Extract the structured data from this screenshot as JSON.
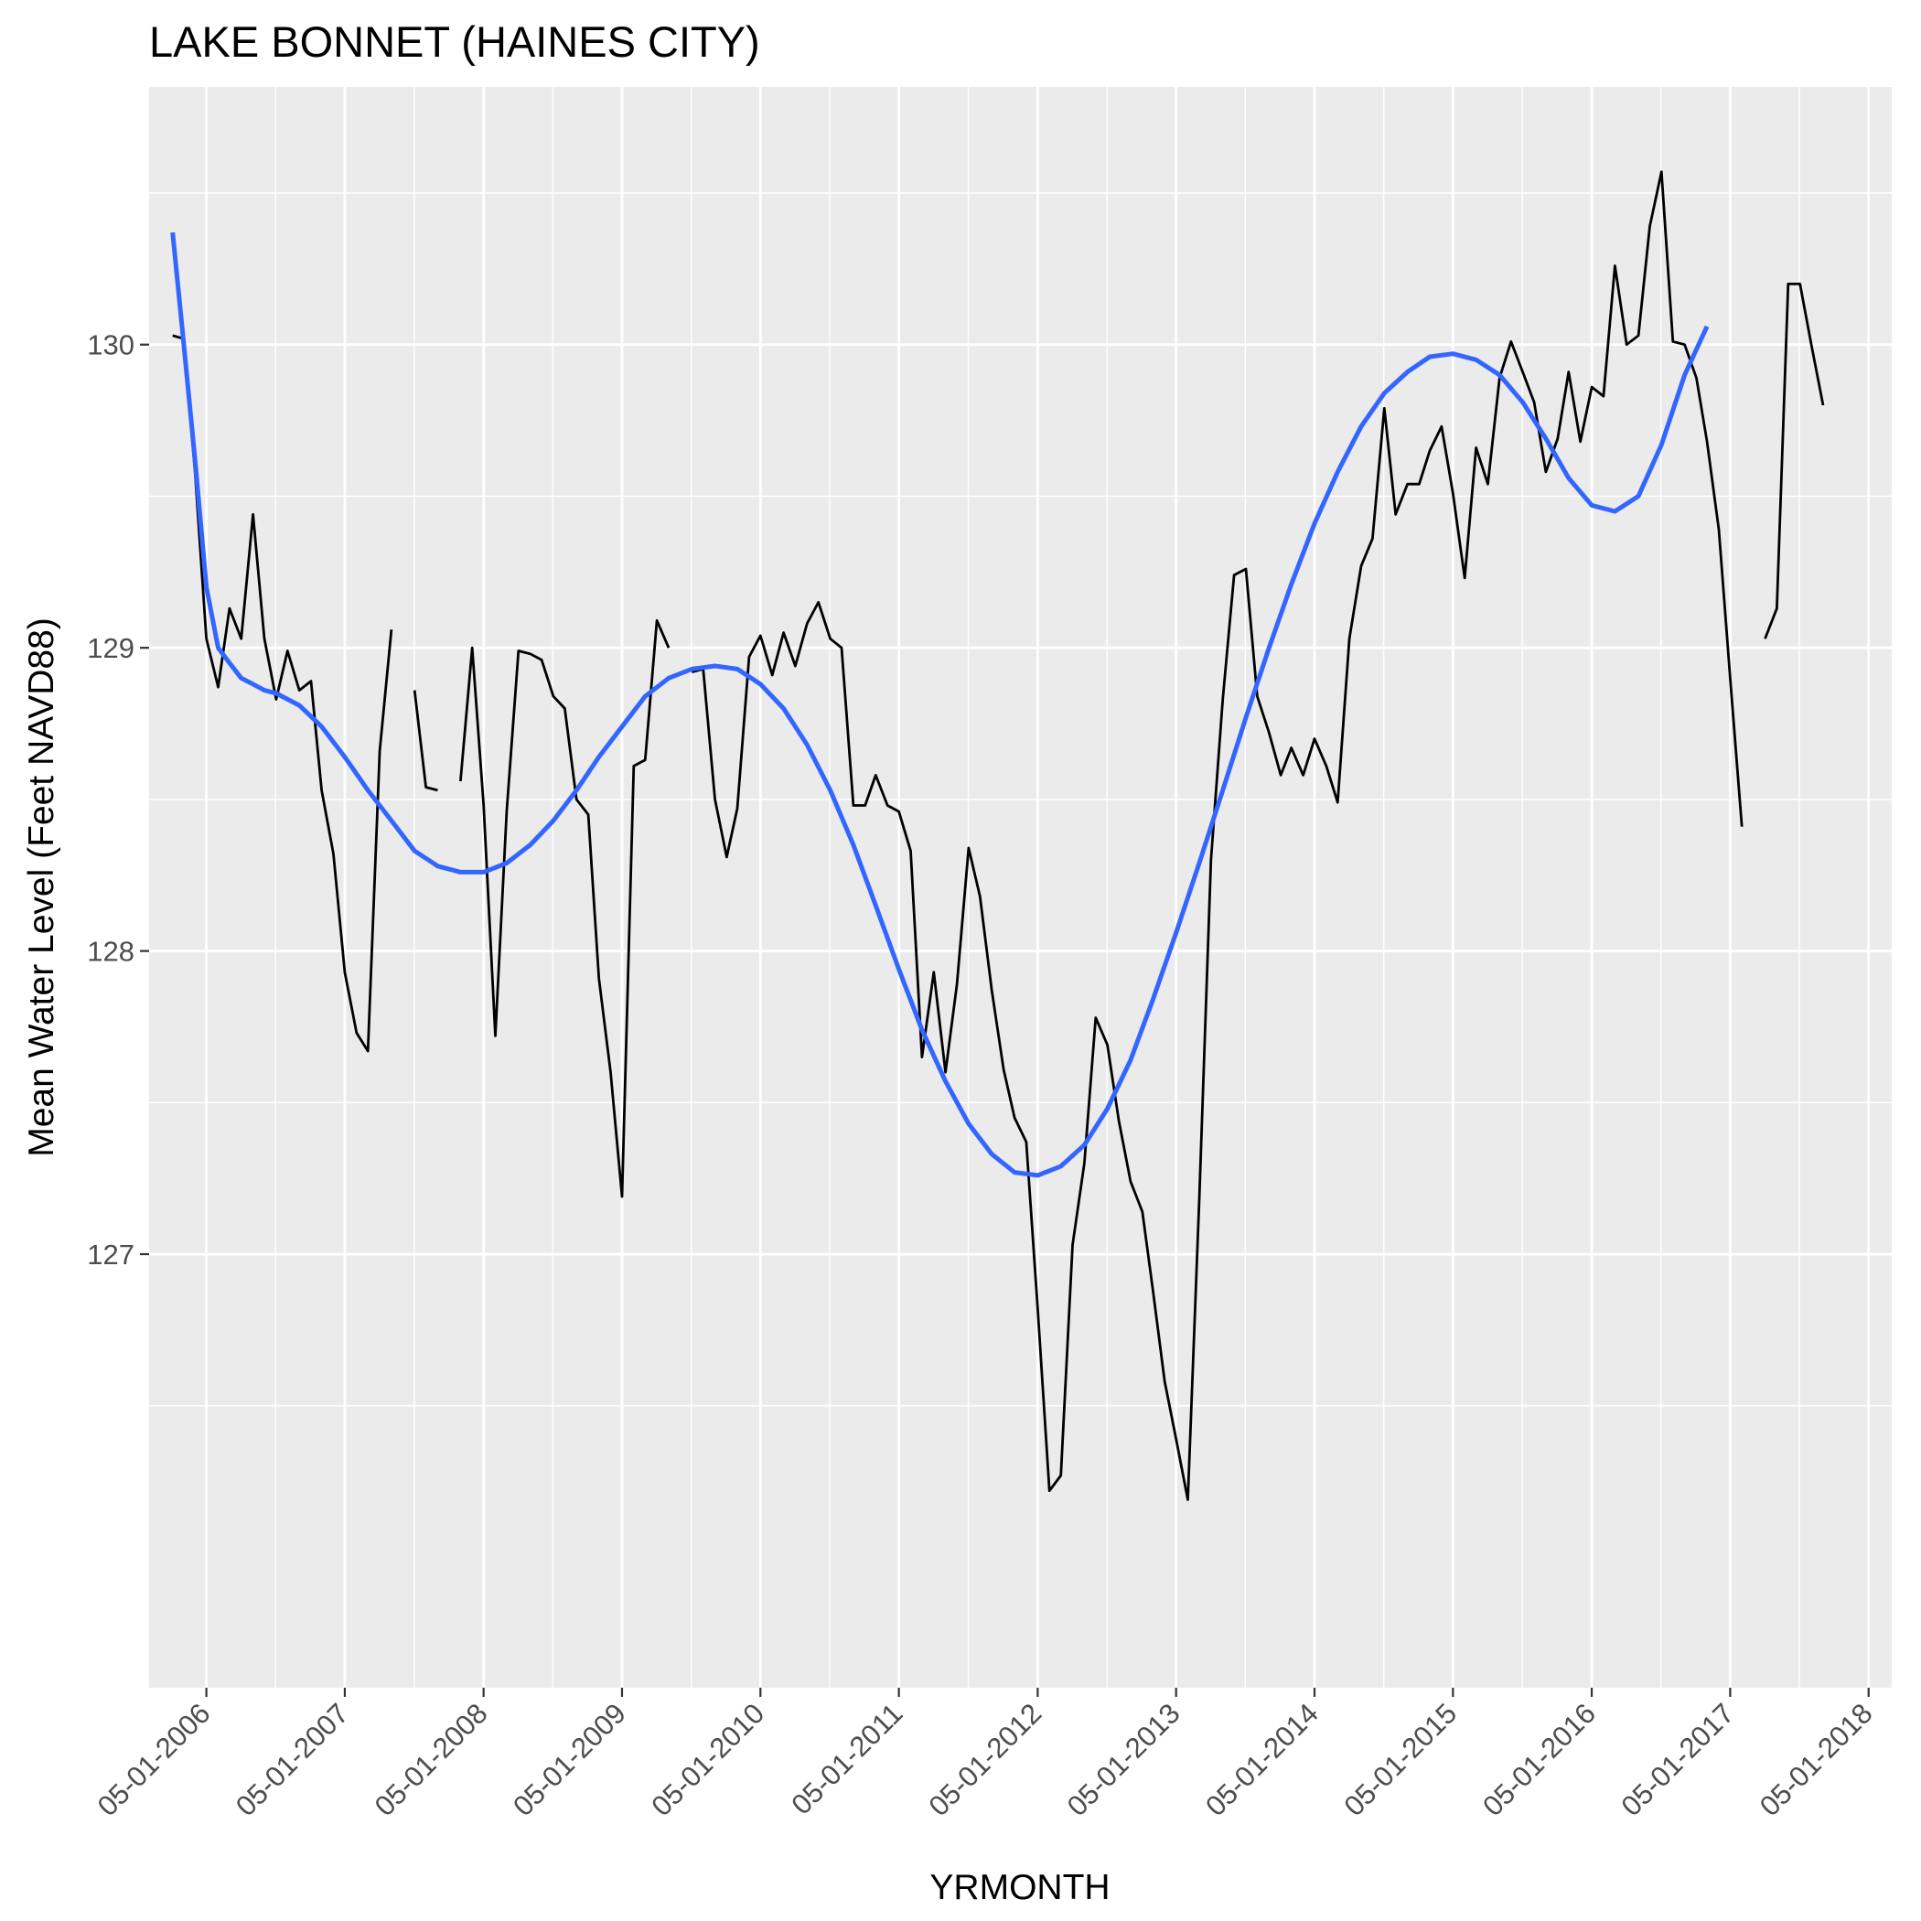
{
  "chart_data": {
    "type": "line",
    "title": "LAKE BONNET (HAINES CITY)",
    "xlabel": "YRMONTH",
    "ylabel": "Mean Water Level (Feet NAVD88)",
    "x_axis": {
      "kind": "date",
      "ticks": [
        "05-01-2006",
        "05-01-2007",
        "05-01-2008",
        "05-01-2009",
        "05-01-2010",
        "05-01-2011",
        "05-01-2012",
        "05-01-2013",
        "05-01-2014",
        "05-01-2015",
        "05-01-2016",
        "05-01-2017",
        "05-01-2018"
      ],
      "range": [
        "2005-12-01",
        "2018-07-01"
      ]
    },
    "y_axis": {
      "ticks": [
        127,
        128,
        129,
        130
      ],
      "range": [
        125.57,
        130.85
      ]
    },
    "grid": true,
    "series": [
      {
        "kind": "observed",
        "color": "#000000",
        "points": [
          [
            "2006-02-01",
            130.03
          ],
          [
            "2006-03-01",
            130.02
          ],
          [
            "2006-04-01",
            129.58
          ],
          [
            "2006-05-01",
            129.03
          ],
          [
            "2006-06-01",
            128.87
          ],
          [
            "2006-07-01",
            129.13
          ],
          [
            "2006-08-01",
            129.03
          ],
          [
            "2006-09-01",
            129.44
          ],
          [
            "2006-10-01",
            129.03
          ],
          [
            "2006-11-01",
            128.83
          ],
          [
            "2006-12-01",
            128.99
          ],
          [
            "2007-01-01",
            128.86
          ],
          [
            "2007-02-01",
            128.89
          ],
          [
            "2007-03-01",
            128.53
          ],
          [
            "2007-04-01",
            128.32
          ],
          [
            "2007-05-01",
            127.93
          ],
          [
            "2007-06-01",
            127.73
          ],
          [
            "2007-07-01",
            127.67
          ],
          [
            "2007-08-01",
            128.66
          ],
          [
            "2007-09-01",
            129.06
          ],
          null,
          [
            "2007-11-01",
            128.86
          ],
          [
            "2007-12-01",
            128.54
          ],
          [
            "2008-01-01",
            128.53
          ],
          null,
          [
            "2008-03-01",
            128.56
          ],
          [
            "2008-04-01",
            129.0
          ],
          [
            "2008-05-01",
            128.48
          ],
          [
            "2008-06-01",
            127.72
          ],
          [
            "2008-07-01",
            128.46
          ],
          [
            "2008-08-01",
            128.99
          ],
          [
            "2008-09-01",
            128.98
          ],
          [
            "2008-10-01",
            128.96
          ],
          [
            "2008-11-01",
            128.84
          ],
          [
            "2008-12-01",
            128.8
          ],
          [
            "2009-01-01",
            128.5
          ],
          [
            "2009-02-01",
            128.45
          ],
          [
            "2009-03-01",
            127.91
          ],
          [
            "2009-04-01",
            127.6
          ],
          [
            "2009-05-01",
            127.19
          ],
          [
            "2009-06-01",
            128.61
          ],
          [
            "2009-07-01",
            128.63
          ],
          [
            "2009-08-01",
            129.09
          ],
          [
            "2009-09-01",
            129.0
          ],
          null,
          [
            "2009-11-01",
            128.92
          ],
          [
            "2009-12-01",
            128.93
          ],
          [
            "2010-01-01",
            128.5
          ],
          [
            "2010-02-01",
            128.31
          ],
          [
            "2010-03-01",
            128.47
          ],
          [
            "2010-04-01",
            128.97
          ],
          [
            "2010-05-01",
            129.04
          ],
          [
            "2010-06-01",
            128.91
          ],
          [
            "2010-07-01",
            129.05
          ],
          [
            "2010-08-01",
            128.94
          ],
          [
            "2010-09-01",
            129.08
          ],
          [
            "2010-10-01",
            129.15
          ],
          [
            "2010-11-01",
            129.03
          ],
          [
            "2010-12-01",
            129.0
          ],
          [
            "2011-01-01",
            128.48
          ],
          [
            "2011-02-01",
            128.48
          ],
          [
            "2011-03-01",
            128.58
          ],
          [
            "2011-04-01",
            128.48
          ],
          [
            "2011-05-01",
            128.46
          ],
          [
            "2011-06-01",
            128.33
          ],
          [
            "2011-07-01",
            127.65
          ],
          [
            "2011-08-01",
            127.93
          ],
          [
            "2011-09-01",
            127.6
          ],
          [
            "2011-10-01",
            127.89
          ],
          [
            "2011-11-01",
            128.34
          ],
          [
            "2011-12-01",
            128.18
          ],
          [
            "2012-01-01",
            127.87
          ],
          [
            "2012-02-01",
            127.61
          ],
          [
            "2012-03-01",
            127.45
          ],
          [
            "2012-04-01",
            127.37
          ],
          [
            "2012-05-01",
            126.82
          ],
          [
            "2012-06-01",
            126.22
          ],
          [
            "2012-07-01",
            126.27
          ],
          [
            "2012-08-01",
            127.03
          ],
          [
            "2012-09-01",
            127.3
          ],
          [
            "2012-10-01",
            127.78
          ],
          [
            "2012-11-01",
            127.69
          ],
          [
            "2012-12-01",
            127.44
          ],
          [
            "2013-01-01",
            127.24
          ],
          [
            "2013-02-01",
            127.14
          ],
          [
            "2013-03-01",
            126.88
          ],
          [
            "2013-04-01",
            126.58
          ],
          [
            "2013-05-01",
            126.39
          ],
          [
            "2013-06-01",
            126.19
          ],
          [
            "2013-07-01",
            127.18
          ],
          [
            "2013-08-01",
            128.3
          ],
          [
            "2013-09-01",
            128.83
          ],
          [
            "2013-10-01",
            129.24
          ],
          [
            "2013-11-01",
            129.26
          ],
          [
            "2013-12-01",
            128.84
          ],
          [
            "2014-01-01",
            128.72
          ],
          [
            "2014-02-01",
            128.58
          ],
          [
            "2014-03-01",
            128.67
          ],
          [
            "2014-04-01",
            128.58
          ],
          [
            "2014-05-01",
            128.7
          ],
          [
            "2014-06-01",
            128.61
          ],
          [
            "2014-07-01",
            128.49
          ],
          [
            "2014-08-01",
            129.03
          ],
          [
            "2014-09-01",
            129.27
          ],
          [
            "2014-10-01",
            129.36
          ],
          [
            "2014-11-01",
            129.79
          ],
          [
            "2014-12-01",
            129.44
          ],
          [
            "2015-01-01",
            129.54
          ],
          [
            "2015-02-01",
            129.54
          ],
          [
            "2015-03-01",
            129.65
          ],
          [
            "2015-04-01",
            129.73
          ],
          [
            "2015-05-01",
            129.51
          ],
          [
            "2015-06-01",
            129.23
          ],
          [
            "2015-07-01",
            129.66
          ],
          [
            "2015-08-01",
            129.54
          ],
          [
            "2015-09-01",
            129.89
          ],
          [
            "2015-10-01",
            130.01
          ],
          [
            "2015-11-01",
            129.91
          ],
          [
            "2015-12-01",
            129.81
          ],
          [
            "2016-01-01",
            129.58
          ],
          [
            "2016-02-01",
            129.69
          ],
          [
            "2016-03-01",
            129.91
          ],
          [
            "2016-04-01",
            129.68
          ],
          [
            "2016-05-01",
            129.86
          ],
          [
            "2016-06-01",
            129.83
          ],
          [
            "2016-07-01",
            130.26
          ],
          [
            "2016-08-01",
            130.0
          ],
          [
            "2016-09-01",
            130.03
          ],
          [
            "2016-10-01",
            130.39
          ],
          [
            "2016-11-01",
            130.57
          ],
          [
            "2016-12-01",
            130.01
          ],
          [
            "2017-01-01",
            130.0
          ],
          [
            "2017-02-01",
            129.89
          ],
          [
            "2017-03-01",
            129.68
          ],
          [
            "2017-04-01",
            129.39
          ],
          [
            "2017-05-01",
            128.9
          ],
          [
            "2017-06-01",
            128.41
          ],
          null,
          [
            "2017-08-01",
            129.03
          ],
          [
            "2017-09-01",
            129.13
          ],
          [
            "2017-10-01",
            130.2
          ],
          [
            "2017-11-01",
            130.2
          ],
          [
            "2017-12-01",
            130.0
          ],
          [
            "2018-01-01",
            129.8
          ]
        ]
      },
      {
        "kind": "smooth",
        "color": "#3366ff",
        "points": [
          [
            "2006-02-01",
            130.37
          ],
          [
            "2006-03-01",
            130.02
          ],
          [
            "2006-04-01",
            129.62
          ],
          [
            "2006-05-01",
            129.2
          ],
          [
            "2006-06-01",
            129.0
          ],
          [
            "2006-07-01",
            128.95
          ],
          [
            "2006-08-01",
            128.9
          ],
          [
            "2006-09-01",
            128.88
          ],
          [
            "2006-10-01",
            128.86
          ],
          [
            "2006-11-01",
            128.85
          ],
          [
            "2007-01-01",
            128.81
          ],
          [
            "2007-03-01",
            128.74
          ],
          [
            "2007-05-01",
            128.64
          ],
          [
            "2007-07-01",
            128.53
          ],
          [
            "2007-09-01",
            128.43
          ],
          [
            "2007-11-01",
            128.33
          ],
          [
            "2008-01-01",
            128.28
          ],
          [
            "2008-03-01",
            128.26
          ],
          [
            "2008-05-01",
            128.26
          ],
          [
            "2008-07-01",
            128.29
          ],
          [
            "2008-09-01",
            128.35
          ],
          [
            "2008-11-01",
            128.43
          ],
          [
            "2009-01-01",
            128.53
          ],
          [
            "2009-03-01",
            128.64
          ],
          [
            "2009-05-01",
            128.74
          ],
          [
            "2009-07-01",
            128.84
          ],
          [
            "2009-09-01",
            128.9
          ],
          [
            "2009-11-01",
            128.93
          ],
          [
            "2010-01-01",
            128.94
          ],
          [
            "2010-03-01",
            128.93
          ],
          [
            "2010-05-01",
            128.88
          ],
          [
            "2010-07-01",
            128.8
          ],
          [
            "2010-09-01",
            128.68
          ],
          [
            "2010-11-01",
            128.53
          ],
          [
            "2011-01-01",
            128.35
          ],
          [
            "2011-03-01",
            128.15
          ],
          [
            "2011-05-01",
            127.94
          ],
          [
            "2011-07-01",
            127.74
          ],
          [
            "2011-09-01",
            127.57
          ],
          [
            "2011-11-01",
            127.43
          ],
          [
            "2012-01-01",
            127.33
          ],
          [
            "2012-03-01",
            127.27
          ],
          [
            "2012-05-01",
            127.26
          ],
          [
            "2012-07-01",
            127.29
          ],
          [
            "2012-09-01",
            127.36
          ],
          [
            "2012-11-01",
            127.48
          ],
          [
            "2013-01-01",
            127.64
          ],
          [
            "2013-03-01",
            127.84
          ],
          [
            "2013-05-01",
            128.06
          ],
          [
            "2013-07-01",
            128.29
          ],
          [
            "2013-09-01",
            128.53
          ],
          [
            "2013-11-01",
            128.77
          ],
          [
            "2014-01-01",
            129.0
          ],
          [
            "2014-03-01",
            129.21
          ],
          [
            "2014-05-01",
            129.41
          ],
          [
            "2014-07-01",
            129.58
          ],
          [
            "2014-09-01",
            129.73
          ],
          [
            "2014-11-01",
            129.84
          ],
          [
            "2015-01-01",
            129.91
          ],
          [
            "2015-03-01",
            129.96
          ],
          [
            "2015-05-01",
            129.97
          ],
          [
            "2015-07-01",
            129.95
          ],
          [
            "2015-09-01",
            129.9
          ],
          [
            "2015-11-01",
            129.81
          ],
          [
            "2016-01-01",
            129.69
          ],
          [
            "2016-03-01",
            129.56
          ],
          [
            "2016-05-01",
            129.47
          ],
          [
            "2016-07-01",
            129.45
          ],
          [
            "2016-09-01",
            129.5
          ],
          [
            "2016-11-01",
            129.67
          ],
          [
            "2017-01-01",
            129.9
          ],
          [
            "2017-03-01",
            130.06
          ]
        ]
      }
    ]
  }
}
